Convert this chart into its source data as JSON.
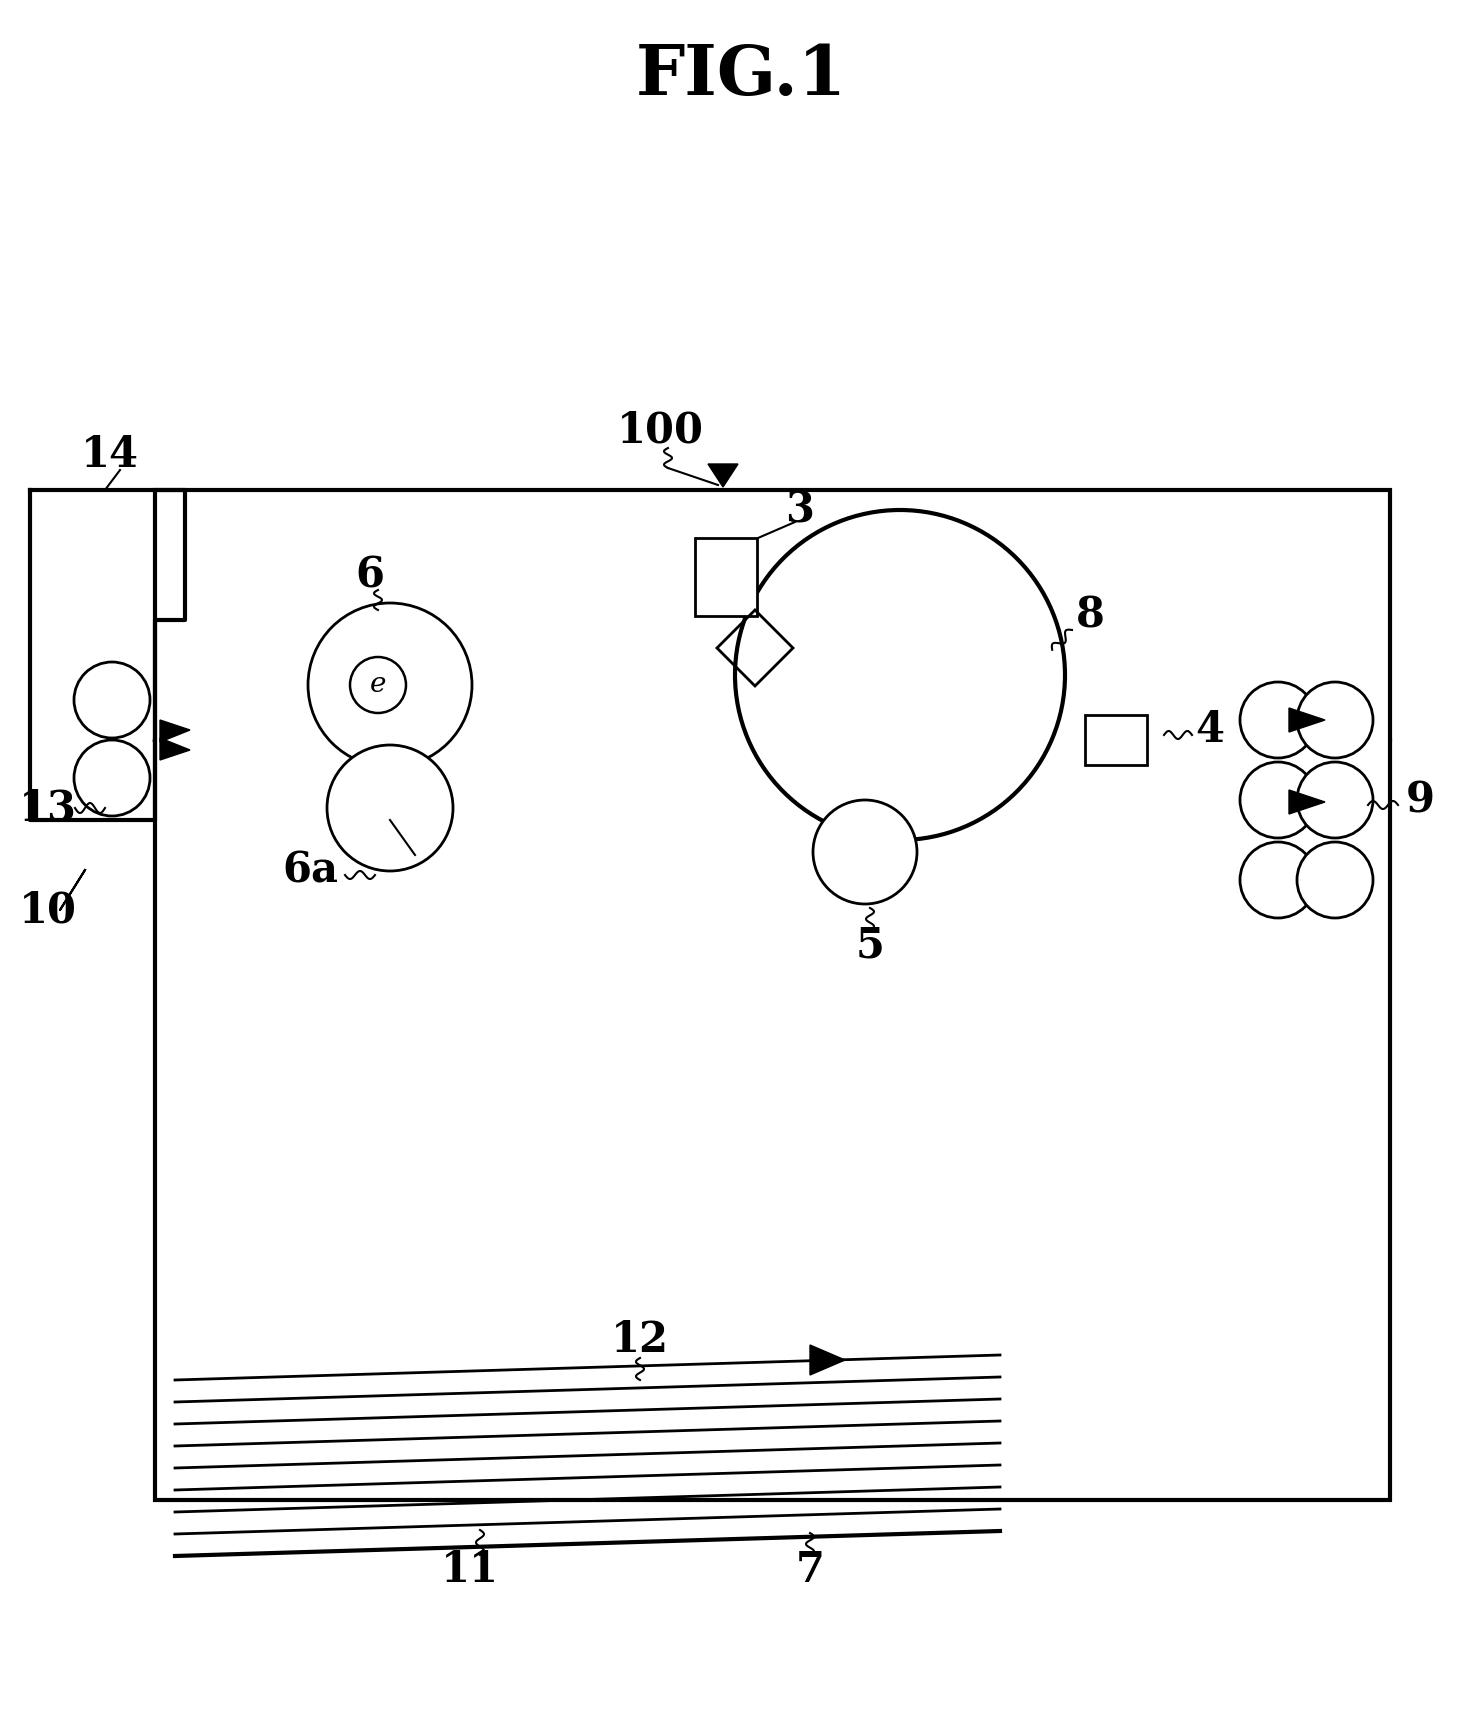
{
  "title": "FIG.1",
  "bg_color": "#ffffff",
  "line_color": "#000000",
  "fig_width": 14.83,
  "fig_height": 17.14,
  "dpi": 100
}
